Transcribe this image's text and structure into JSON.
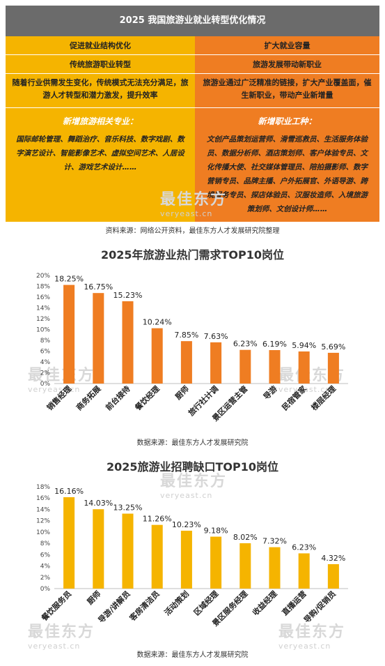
{
  "table": {
    "title": "2025 我国旅游业就业转型优化情况",
    "left": {
      "row1": "促进就业结构优化",
      "row2": "传统旅游职业转型",
      "desc": "随着行业供需发生变化，传统模式无法充分满足，旅游人才转型和潜力激发，提升效率",
      "subhead": "新增旅游相关专业：",
      "items": "国际邮轮管理、舞蹈治疗、音乐科技、数字戏剧、数字演艺设计、智能影像艺术、虚拟空间艺术、人居设计、游戏艺术设计……"
    },
    "right": {
      "row1": "扩大就业容量",
      "row2": "旅游发展带动新职业",
      "desc": "旅游业通过广泛精准的链接，扩大产业覆盖面，催生新职业，带动产业新增量",
      "subhead": "新增职业工种：",
      "items": "文创产品策划运营师、滑雪巡救员、生活服务体验员、数据分析师、酒店策划师、客户体验专员、文化传播大使、社交媒体管理员、陪拍摄影师、数字营销专员、品牌主播、户外拓展官、外语导游、跨境服务专员、探店体验员、汉服妆造师、入境旅游策划师、文创设计师……"
    },
    "source": "资料来源：网络公开资料，最佳东方人才发展研究院整理"
  },
  "watermark": {
    "name": "最佳东方",
    "url": "veryeast.cn"
  },
  "colors": {
    "orange": "#ef7d22",
    "gold": "#f5b400",
    "grey": "#6b6b6b"
  },
  "chart_data": [
    {
      "type": "bar",
      "title": "2025年旅游业热门需求TOP10岗位",
      "categories": [
        "销售经理",
        "商务拓展",
        "前台接待",
        "餐饮经理",
        "厨师",
        "旅行社计调",
        "景区运营主管",
        "导游",
        "民宿管家",
        "楼层经理"
      ],
      "values": [
        18.25,
        16.75,
        15.23,
        10.24,
        7.85,
        7.63,
        6.23,
        6.19,
        5.94,
        5.69
      ],
      "labels": [
        "18.25%",
        "16.75%",
        "15.23%",
        "10.24%",
        "7.85%",
        "7.63%",
        "6.23%",
        "6.19%",
        "5.94%",
        "5.69%"
      ],
      "yticks": [
        "0%",
        "2%",
        "4%",
        "6%",
        "8%",
        "10%",
        "12%",
        "14%",
        "16%",
        "18%",
        "20%"
      ],
      "ylim": [
        0,
        20
      ],
      "grid": false,
      "color": "#ef7d22",
      "source": "数据来源：最佳东方人才发展研究院"
    },
    {
      "type": "bar",
      "title": "2025旅游业招聘缺口TOP10岗位",
      "categories": [
        "餐饮服务员",
        "厨师",
        "导游/讲解员",
        "客房清洁员",
        "活动策划",
        "区域经理",
        "景区服务经理",
        "收益经理",
        "直播运营",
        "导购/促销员"
      ],
      "values": [
        16.16,
        14.03,
        13.25,
        11.26,
        10.23,
        9.18,
        8.02,
        7.32,
        6.23,
        4.32
      ],
      "labels": [
        "16.16%",
        "14.03%",
        "13.25%",
        "11.26%",
        "10.23%",
        "9.18%",
        "8.02%",
        "7.32%",
        "6.23%",
        "4.32%"
      ],
      "yticks": [
        "0%",
        "2%",
        "4%",
        "6%",
        "8%",
        "10%",
        "12%",
        "14%",
        "16%",
        "18%"
      ],
      "ylim": [
        0,
        18
      ],
      "grid": false,
      "color": "#f5b400",
      "source": "数据来源：最佳东方人才发展研究院"
    }
  ]
}
